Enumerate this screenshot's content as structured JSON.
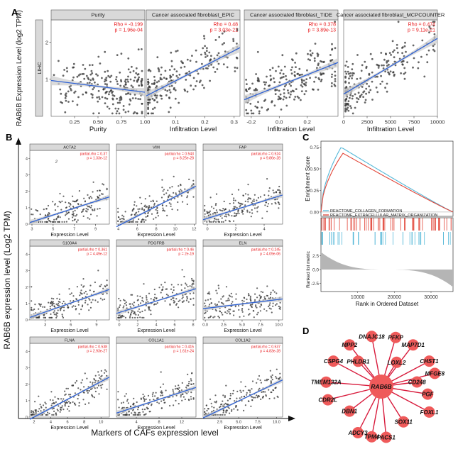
{
  "figure": {
    "panel_labels": {
      "A": "A",
      "B": "B",
      "C": "C",
      "D": "D"
    }
  },
  "colors": {
    "red_text": "#e8191c",
    "line_blue": "#2f62d4",
    "ci_grey": "#cfcfcf",
    "point": "#333333",
    "strip_bg": "#d9d9d9",
    "gsea_blue": "#55b8d8",
    "gsea_red": "#e2473a",
    "node_fill": "#ef5a5a",
    "edge": "#d81b3c"
  },
  "chart_data": [
    {
      "id": "A",
      "type": "scatter",
      "ylabel": "RAB6B Expression Level (log2 TPM)",
      "row_strip": "LIHC",
      "yticks": [
        "1",
        "2"
      ],
      "ylim": [
        0,
        2.6
      ],
      "facets": [
        {
          "title": "Purity",
          "xlabel": "Purity",
          "rho": "Rho = -0.199",
          "p": "p = 1.96e-04",
          "xlim": [
            0,
            1.0
          ],
          "xticks": [
            "0.25",
            "0.50",
            "0.75",
            "1.00"
          ],
          "xtick_vals": [
            0.25,
            0.5,
            0.75,
            1.0
          ],
          "fit": [
            [
              0.05,
              0.95
            ],
            [
              1.0,
              0.65
            ]
          ],
          "slope": -0.3
        },
        {
          "title": "Cancer associated fibroblast_EPIC",
          "xlabel": "Infiltration Level",
          "rho": "Rho = 0.48",
          "p": "p = 3.03e-21",
          "xlim": [
            0,
            0.32
          ],
          "xticks": [
            "0.1",
            "0.2",
            "0.3"
          ],
          "xtick_vals": [
            0.1,
            0.2,
            0.3
          ],
          "fit": [
            [
              0.0,
              0.55
            ],
            [
              0.32,
              1.85
            ]
          ],
          "slope": 4.0
        },
        {
          "title": "Cancer associated fibroblast_TIDE",
          "xlabel": "Infiltration Level",
          "rho": "Rho = 0.378",
          "p": "p = 3.89e-13",
          "xlim": [
            -0.25,
            0.42
          ],
          "xticks": [
            "-0.2",
            "0.0",
            "0.2"
          ],
          "xtick_vals": [
            -0.2,
            0.0,
            0.2
          ],
          "fit": [
            [
              -0.25,
              0.45
            ],
            [
              0.42,
              1.45
            ]
          ],
          "slope": 1.5
        },
        {
          "title": "Cancer associated fibroblast_MCPCOUNTER",
          "xlabel": "Infiltration Level",
          "rho": "Rho = 0.474",
          "p": "p = 9.11e-21",
          "xlim": [
            0,
            10000
          ],
          "xticks": [
            "0",
            "2500",
            "5000",
            "7500",
            "10000"
          ],
          "xtick_vals": [
            0,
            2500,
            5000,
            7500,
            10000
          ],
          "fit": [
            [
              0,
              0.6
            ],
            [
              10000,
              2.1
            ]
          ],
          "slope": 0.00015
        }
      ]
    },
    {
      "id": "B",
      "type": "scatter",
      "ylabel": "RAB6B expression level (Log2 TPM)",
      "xlabel": "Markers of CAFs expression level",
      "facet_xlabel": "Expression Level",
      "yticks": [
        "0",
        "1",
        "2",
        "3",
        "4"
      ],
      "ylim": [
        0,
        4.5
      ],
      "facets": [
        {
          "title": "ACTA2",
          "rho": "partial.rho = 0.37",
          "p": "p = 1.33e-12",
          "xlim": [
            2.8,
            10.3
          ],
          "xticks": [
            "3",
            "5",
            "7",
            "9"
          ],
          "xtick_vals": [
            3,
            5,
            7,
            9
          ],
          "fit": [
            [
              3.3,
              0.2
            ],
            [
              10.0,
              1.6
            ]
          ],
          "extra": "2"
        },
        {
          "title": "VIM",
          "rho": "partial.rho = 0.543",
          "p": "p = 8.25e-28",
          "xlim": [
            3.8,
            12.2
          ],
          "xticks": [
            "4",
            "6",
            "8",
            "10",
            "12"
          ],
          "xtick_vals": [
            4,
            6,
            8,
            10,
            12
          ],
          "fit": [
            [
              4.5,
              0.05
            ],
            [
              11.8,
              2.2
            ]
          ]
        },
        {
          "title": "FAP",
          "rho": "partial.rho = 0.524",
          "p": "p = 9.86e-28",
          "xlim": [
            -0.3,
            5.3
          ],
          "xticks": [
            "0",
            "2",
            "4"
          ],
          "xtick_vals": [
            0,
            2,
            4
          ],
          "fit": [
            [
              0.0,
              0.35
            ],
            [
              5.2,
              1.75
            ]
          ]
        },
        {
          "title": "S100A4",
          "rho": "partial.rho = 0.361",
          "p": "p = 4.49e-12",
          "xlim": [
            1.2,
            10.5
          ],
          "xticks": [
            "3",
            "6",
            "9"
          ],
          "xtick_vals": [
            3,
            6,
            9
          ],
          "fit": [
            [
              2.0,
              0.3
            ],
            [
              10.2,
              1.8
            ]
          ]
        },
        {
          "title": "PDGFRB",
          "rho": "partial.rho = 0.46",
          "p": "p = 2e-19",
          "xlim": [
            -0.3,
            8.3
          ],
          "xticks": [
            "0",
            "2",
            "4",
            "6",
            "8"
          ],
          "xtick_vals": [
            0,
            2,
            4,
            6,
            8
          ],
          "fit": [
            [
              0.0,
              0.45
            ],
            [
              8.0,
              1.85
            ]
          ]
        },
        {
          "title": "ELN",
          "rho": "partial.rho = 0.245",
          "p": "p = 4.09e-06",
          "xlim": [
            -0.3,
            10.5
          ],
          "xticks": [
            "0.0",
            "2.5",
            "5.0",
            "7.5",
            "10.0"
          ],
          "xtick_vals": [
            0,
            2.5,
            5,
            7.5,
            10
          ],
          "fit": [
            [
              0.0,
              0.7
            ],
            [
              10.0,
              1.25
            ]
          ]
        },
        {
          "title": "FLNA",
          "rho": "partial.rho = 0.538",
          "p": "p = 2.93e-27",
          "xlim": [
            1.5,
            11.0
          ],
          "xticks": [
            "2",
            "4",
            "6",
            "8",
            "10"
          ],
          "xtick_vals": [
            2,
            4,
            6,
            8,
            10
          ],
          "fit": [
            [
              2.0,
              0.0
            ],
            [
              10.5,
              2.3
            ]
          ]
        },
        {
          "title": "COL1A1",
          "rho": "partial.rho = 0.415",
          "p": "p = 1.61e-24",
          "xlim": [
            0.5,
            14.5
          ],
          "xticks": [
            "4",
            "8",
            "12"
          ],
          "xtick_vals": [
            4,
            8,
            12
          ],
          "fit": [
            [
              1.0,
              0.3
            ],
            [
              14.0,
              1.75
            ]
          ]
        },
        {
          "title": "COL1A2",
          "rho": "partial.rho = 0.537",
          "p": "p = 4.83e-28",
          "xlim": [
            0.3,
            10.8
          ],
          "xticks": [
            "2.5",
            "5.0",
            "7.5",
            "10.0"
          ],
          "xtick_vals": [
            2.5,
            5,
            7.5,
            10
          ],
          "fit": [
            [
              1.0,
              0.1
            ],
            [
              10.5,
              2.2
            ]
          ]
        }
      ]
    },
    {
      "id": "C",
      "type": "line",
      "ylabel_top": "Enrichment Score",
      "ylabel_bottom": "Ranked list metric",
      "xlabel": "Rank in Ordered Dataset",
      "xticks": [
        "10000",
        "20000",
        "30000"
      ],
      "xtick_vals": [
        10000,
        20000,
        30000
      ],
      "xlim": [
        0,
        36000
      ],
      "es_yticks": [
        "0.00",
        "0.25",
        "0.50",
        "0.75"
      ],
      "es_ytick_vals": [
        0,
        0.25,
        0.5,
        0.75
      ],
      "es_ylim": [
        -0.05,
        0.82
      ],
      "metric_yticks": [
        "2.5",
        "0.0",
        "-2.5"
      ],
      "metric_ytick_vals": [
        2.5,
        0,
        -2.5
      ],
      "metric_ylim": [
        -4,
        4
      ],
      "series": [
        {
          "name": "REACTOME_COLLAGEN_FORMATION",
          "color": "#55b8d8",
          "peak": 0.75,
          "peak_x": 5500
        },
        {
          "name": "REACTOME_EXTRACELLULAR_MATRIX_ORGANIZATION",
          "color": "#e2473a",
          "peak": 0.68,
          "peak_x": 6000
        }
      ]
    },
    {
      "id": "D",
      "type": "network",
      "center": "RAB6B",
      "nodes": [
        "PFKP",
        "MAP7D1",
        "DNAJC18",
        "CHST1",
        "MPP2",
        "LOXL2",
        "MFGE8",
        "CSPG4",
        "CD248",
        "PHLDB1",
        "PGF",
        "TMEM132A",
        "FOXL1",
        "CDR2L",
        "DBN1",
        "SOX11",
        "PACS1",
        "ADCY3",
        "TPM4"
      ]
    }
  ]
}
